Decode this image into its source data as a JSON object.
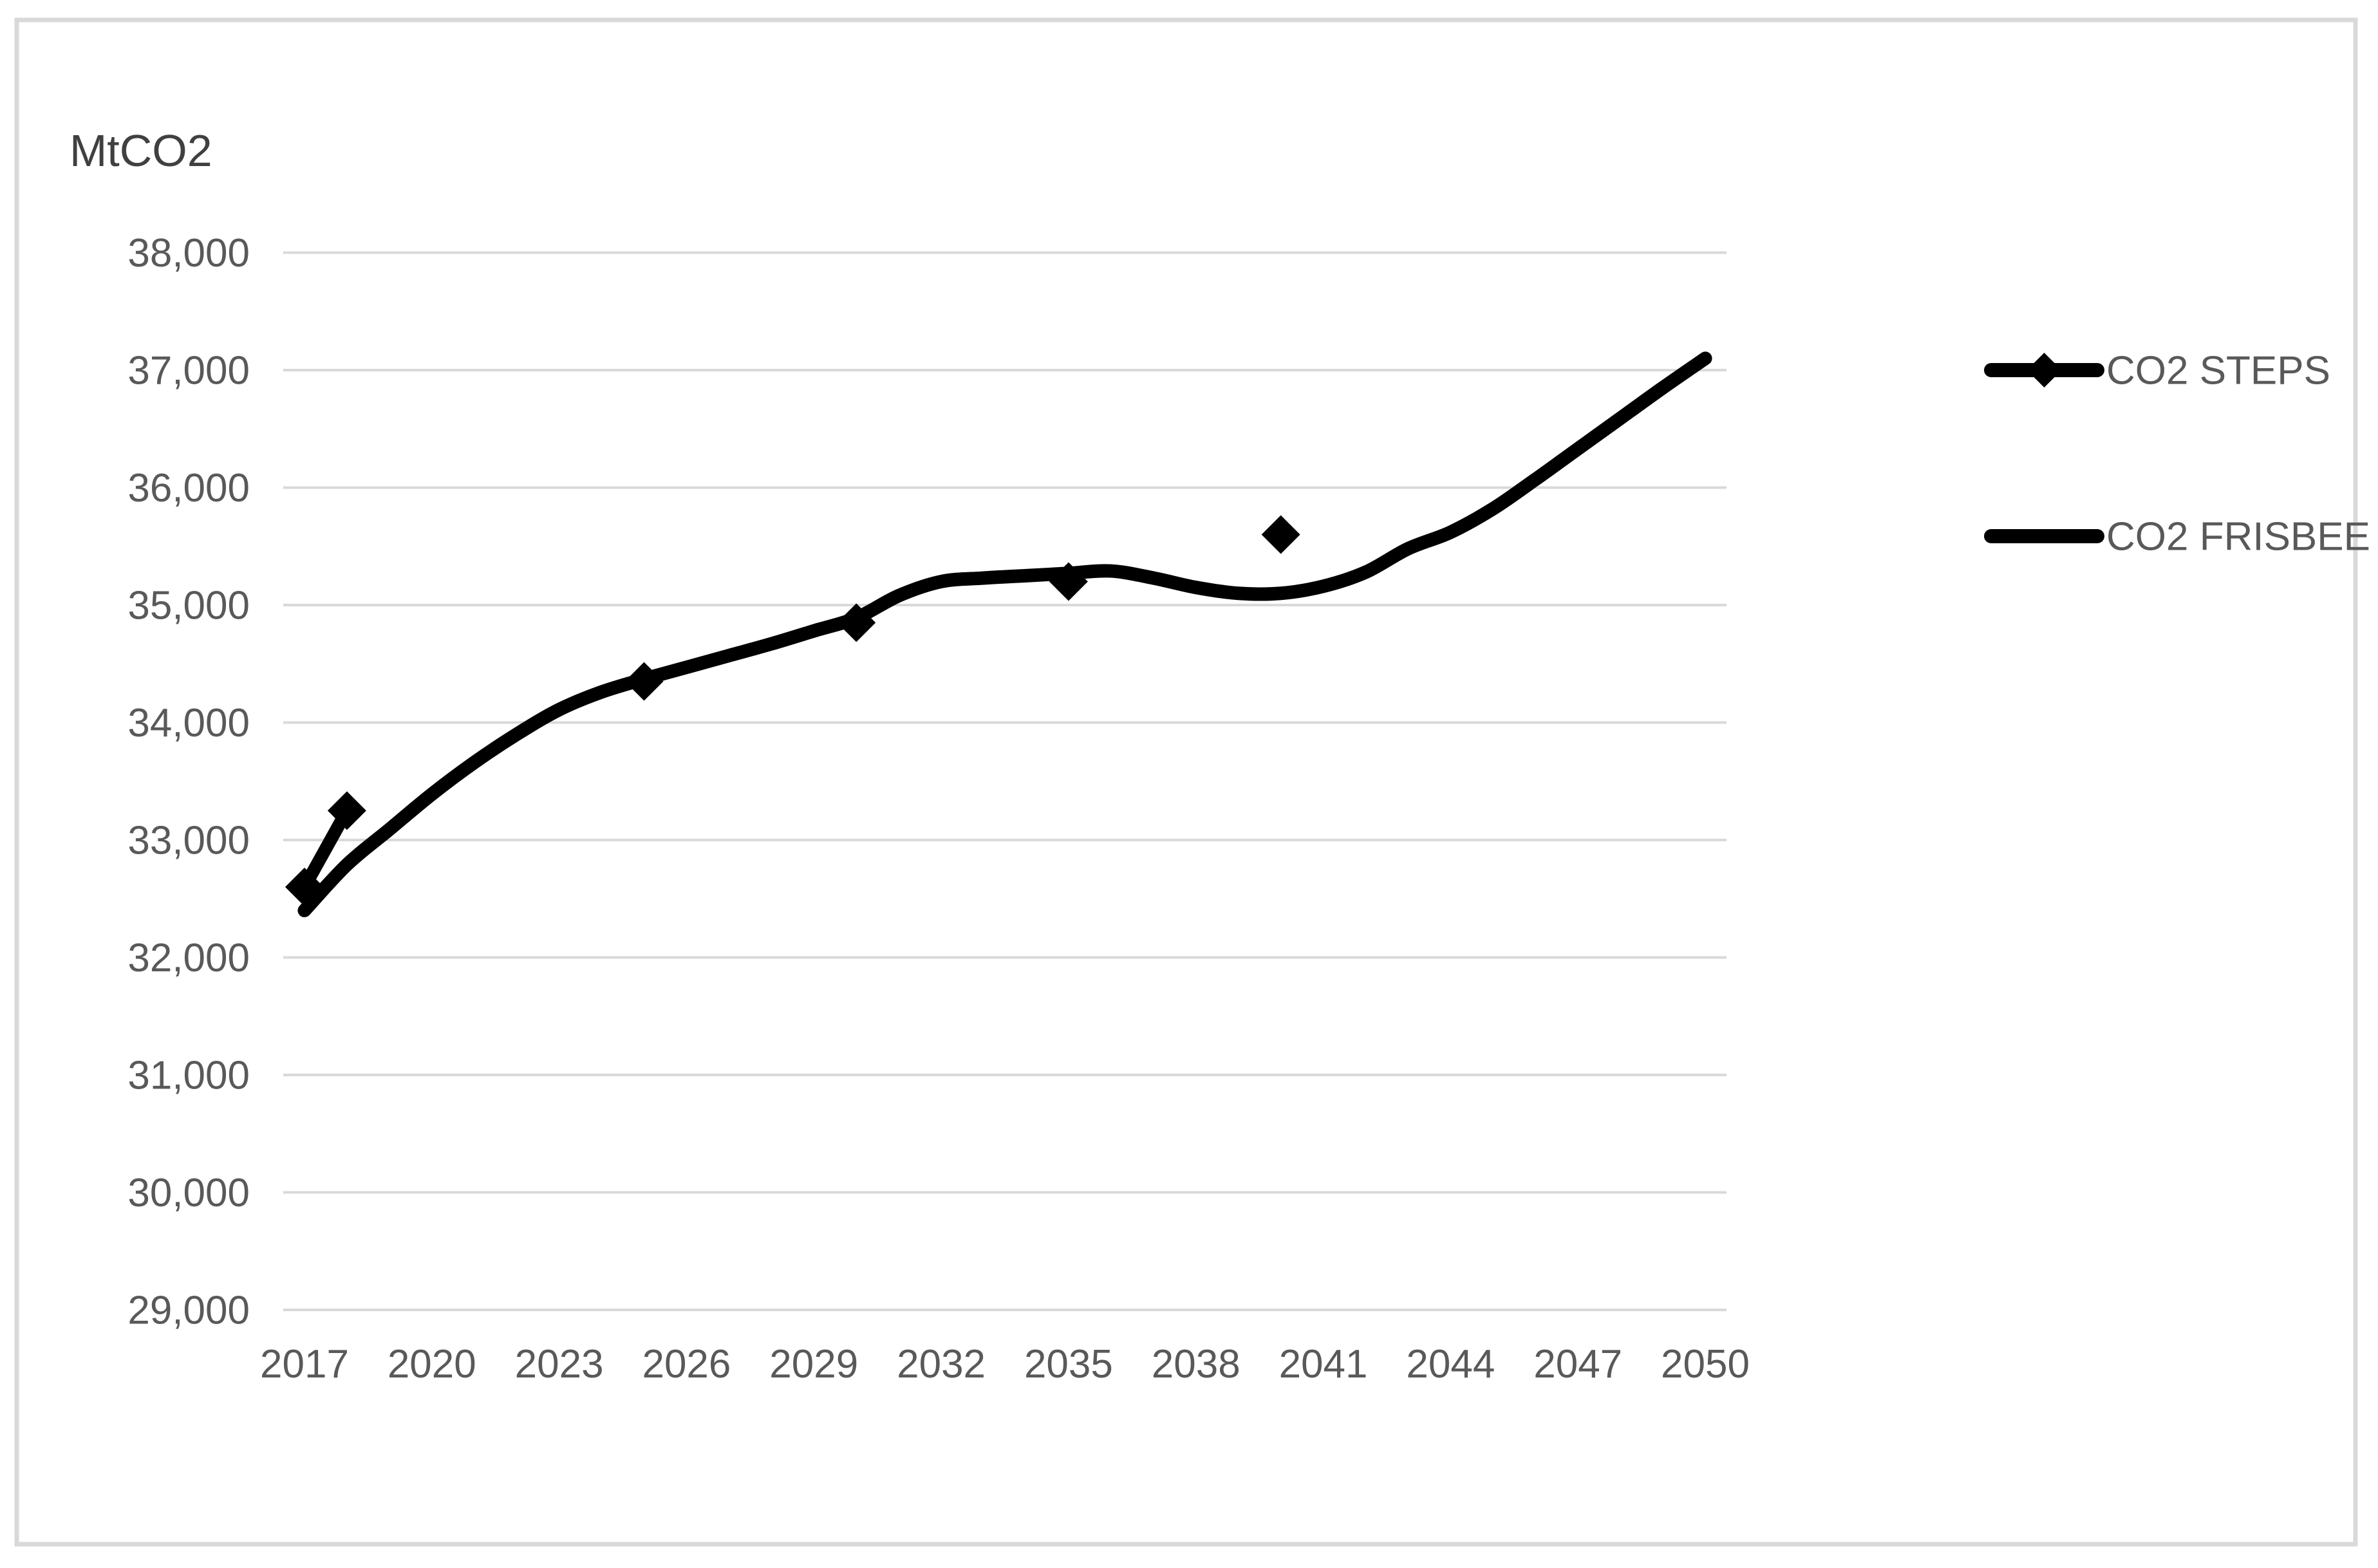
{
  "chart": {
    "colors": {
      "series_line": "#000000",
      "gridline": "#d9d9d9",
      "frame_border": "#d9d9d9",
      "axis_text": "#595959",
      "unit_label_text": "#404040",
      "background": "#ffffff"
    }
  },
  "chart_data": {
    "type": "line",
    "title": "",
    "ylabel": "MtCO2",
    "xlabel": "",
    "ylim": [
      29000,
      38000
    ],
    "y_tick_step": 1000,
    "y_ticks": [
      "29,000",
      "30,000",
      "31,000",
      "32,000",
      "33,000",
      "34,000",
      "35,000",
      "36,000",
      "37,000",
      "38,000"
    ],
    "x_range": [
      2017,
      2050
    ],
    "x_ticks": [
      "2017",
      "2020",
      "2023",
      "2026",
      "2029",
      "2032",
      "2035",
      "2038",
      "2041",
      "2044",
      "2047",
      "2050"
    ],
    "grid": "horizontal-only",
    "legend_position": "right",
    "series": [
      {
        "name": "CO2 STEPS",
        "marker": "diamond",
        "connect": "adjacent-years-only",
        "x": [
          2017,
          2018,
          2025,
          2030,
          2035,
          2040
        ],
        "values": [
          32600,
          33250,
          34350,
          34850,
          35200,
          35600
        ]
      },
      {
        "name": "CO2 FRISBEE",
        "marker": "none",
        "smooth": true,
        "x": [
          2017,
          2018,
          2019,
          2020,
          2021,
          2022,
          2023,
          2024,
          2025,
          2026,
          2027,
          2028,
          2029,
          2030,
          2031,
          2032,
          2033,
          2034,
          2035,
          2036,
          2037,
          2038,
          2039,
          2040,
          2041,
          2042,
          2043,
          2044,
          2045,
          2046,
          2047,
          2048,
          2049,
          2050
        ],
        "values": [
          32400,
          32790,
          33090,
          33390,
          33660,
          33900,
          34110,
          34260,
          34370,
          34470,
          34570,
          34670,
          34780,
          34890,
          35080,
          35200,
          35230,
          35250,
          35270,
          35290,
          35230,
          35150,
          35100,
          35100,
          35160,
          35280,
          35480,
          35620,
          35820,
          36070,
          36330,
          36590,
          36850,
          37100
        ]
      }
    ]
  }
}
